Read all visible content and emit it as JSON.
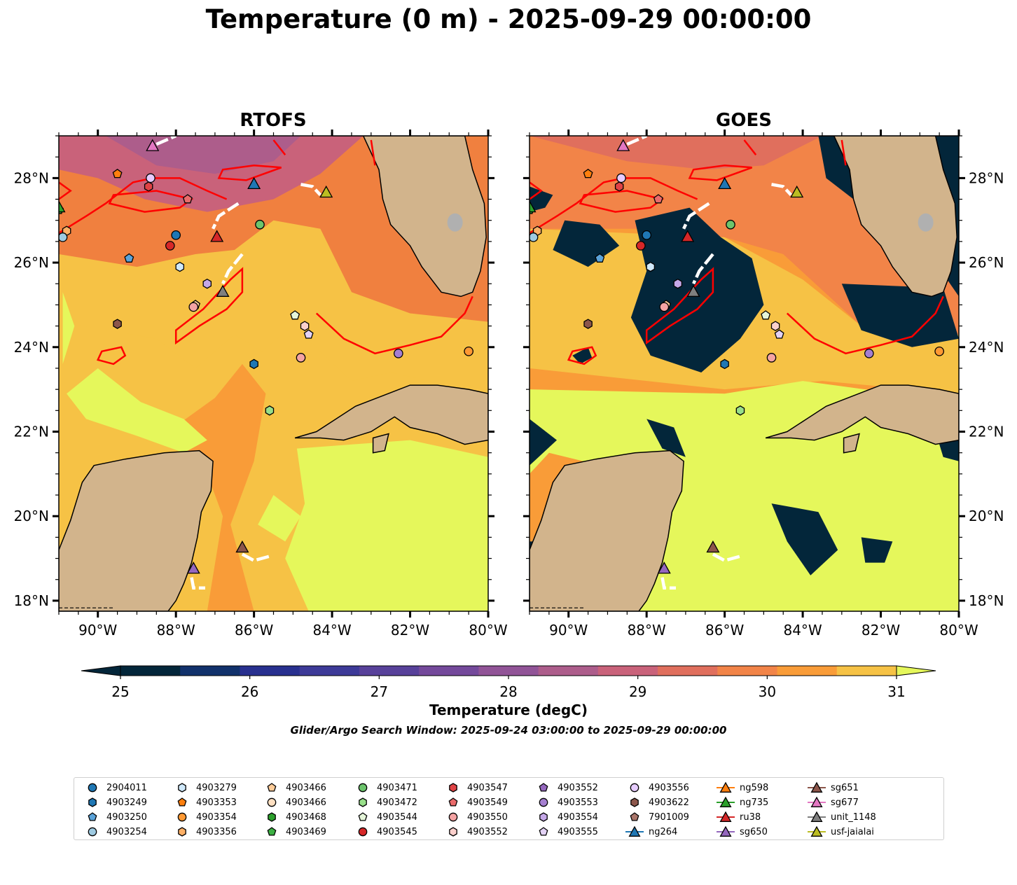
{
  "title": "Temperature (0 m) - 2025-09-29 00:00:00",
  "panels": [
    {
      "title": "RTOFS",
      "source": "model"
    },
    {
      "title": "GOES",
      "source": "satellite"
    }
  ],
  "map": {
    "lon_range": [
      -91,
      -80
    ],
    "lat_range": [
      17.75,
      29
    ],
    "lon_ticks": [
      "90°W",
      "88°W",
      "86°W",
      "84°W",
      "82°W",
      "80°W"
    ],
    "lon_tick_values": [
      -90,
      -88,
      -86,
      -84,
      -82,
      -80
    ],
    "lat_ticks": [
      "18°N",
      "20°N",
      "22°N",
      "24°N",
      "26°N",
      "28°N"
    ],
    "lat_tick_values": [
      18,
      20,
      22,
      24,
      26,
      28
    ],
    "land_color": "#d2b48c",
    "contour_color": "#ff0000",
    "track_color": "#ffffff"
  },
  "colorbar": {
    "label": "Temperature (degC)",
    "ticks": [
      "25",
      "26",
      "27",
      "28",
      "29",
      "30",
      "31"
    ],
    "levels": [
      25,
      25.5,
      26,
      26.5,
      27,
      27.5,
      28,
      28.5,
      29,
      29.5,
      30,
      30.5,
      31
    ],
    "colors": [
      "#03263a",
      "#11316b",
      "#28308f",
      "#3d3a98",
      "#58419a",
      "#74499b",
      "#915497",
      "#ad5d8b",
      "#c9627a",
      "#e06f5d",
      "#f28448",
      "#f99c38",
      "#f6c245"
    ],
    "over_color": "#e5f75b",
    "extend": "both"
  },
  "search_window": "Glider/Argo Search Window: 2025-09-24 03:00:00 to 2025-09-29 00:00:00",
  "legend": [
    {
      "label": "2904011",
      "marker": "circle",
      "color": "#1f77b4"
    },
    {
      "label": "4903249",
      "marker": "hexagon",
      "color": "#1f77b4"
    },
    {
      "label": "4903250",
      "marker": "pentagon",
      "color": "#5ba3d9"
    },
    {
      "label": "4903254",
      "marker": "circle",
      "color": "#9ecae1"
    },
    {
      "label": "4903279",
      "marker": "hexagon",
      "color": "#cfe8fa"
    },
    {
      "label": "4903353",
      "marker": "pentagon",
      "color": "#ff7f0e"
    },
    {
      "label": "4903354",
      "marker": "circle",
      "color": "#ff9933"
    },
    {
      "label": "4903356",
      "marker": "hexagon",
      "color": "#ffb066"
    },
    {
      "label": "4903466",
      "marker": "pentagon",
      "color": "#ffcc99"
    },
    {
      "label": "4903466",
      "marker": "circle",
      "color": "#ffe0c2"
    },
    {
      "label": "4903468",
      "marker": "hexagon",
      "color": "#2ca02c"
    },
    {
      "label": "4903469",
      "marker": "pentagon",
      "color": "#3cb043"
    },
    {
      "label": "4903471",
      "marker": "circle",
      "color": "#6cc46c"
    },
    {
      "label": "4903472",
      "marker": "hexagon",
      "color": "#98df8a"
    },
    {
      "label": "4903544",
      "marker": "pentagon",
      "color": "#e5f5d9"
    },
    {
      "label": "4903545",
      "marker": "circle",
      "color": "#d62728"
    },
    {
      "label": "4903547",
      "marker": "hexagon",
      "color": "#e04345"
    },
    {
      "label": "4903549",
      "marker": "pentagon",
      "color": "#ea6b6b"
    },
    {
      "label": "4903550",
      "marker": "circle",
      "color": "#f4a3a3"
    },
    {
      "label": "4903552",
      "marker": "hexagon",
      "color": "#fbd0cc"
    },
    {
      "label": "4903552",
      "marker": "pentagon",
      "color": "#9467bd"
    },
    {
      "label": "4903553",
      "marker": "circle",
      "color": "#a57fd0"
    },
    {
      "label": "4903554",
      "marker": "hexagon",
      "color": "#c5a8e8"
    },
    {
      "label": "4903555",
      "marker": "pentagon",
      "color": "#e3d2f5"
    },
    {
      "label": "4903556",
      "marker": "circle",
      "color": "#e6ccff"
    },
    {
      "label": "4903622",
      "marker": "hexagon",
      "color": "#8c564b"
    },
    {
      "label": "7901009",
      "marker": "pentagon",
      "color": "#a9756a"
    },
    {
      "label": "ng264",
      "marker": "triangle",
      "color": "#1f77b4"
    },
    {
      "label": "ng598",
      "marker": "triangle",
      "color": "#ff7f0e"
    },
    {
      "label": "ng735",
      "marker": "triangle",
      "color": "#2ca02c"
    },
    {
      "label": "ru38",
      "marker": "triangle",
      "color": "#d62728"
    },
    {
      "label": "sg650",
      "marker": "triangle",
      "color": "#9467bd"
    },
    {
      "label": "sg651",
      "marker": "triangle",
      "color": "#8c564b"
    },
    {
      "label": "sg677",
      "marker": "triangle",
      "color": "#e377c2"
    },
    {
      "label": "unit_1148",
      "marker": "triangle",
      "color": "#7f7f7f"
    },
    {
      "label": "usf-jaialai",
      "marker": "triangle",
      "color": "#bcbd22"
    }
  ],
  "observations": [
    {
      "id": "4903469",
      "lon": -91.0,
      "lat": 27.25
    },
    {
      "id": "4903356",
      "lon": -90.8,
      "lat": 26.75
    },
    {
      "id": "4903254",
      "lon": -90.9,
      "lat": 26.6
    },
    {
      "id": "4903353",
      "lon": -89.5,
      "lat": 28.1
    },
    {
      "id": "4903556",
      "lon": -88.65,
      "lat": 28.0
    },
    {
      "id": "4903547",
      "lon": -88.7,
      "lat": 27.8
    },
    {
      "id": "4903549",
      "lon": -87.7,
      "lat": 27.5
    },
    {
      "id": "2904011",
      "lon": -88.0,
      "lat": 26.65
    },
    {
      "id": "4903545",
      "lon": -88.15,
      "lat": 26.4
    },
    {
      "id": "4903250",
      "lon": -89.2,
      "lat": 26.1
    },
    {
      "id": "4903279",
      "lon": -87.9,
      "lat": 25.9
    },
    {
      "id": "4903471",
      "lon": -85.85,
      "lat": 26.9
    },
    {
      "id": "4903554",
      "lon": -87.2,
      "lat": 25.5
    },
    {
      "id": "4903466",
      "lon": -87.5,
      "lat": 25.0
    },
    {
      "id": "4903550",
      "lon": -87.55,
      "lat": 24.95
    },
    {
      "id": "4903622",
      "lon": -89.5,
      "lat": 24.55
    },
    {
      "id": "4903544",
      "lon": -84.95,
      "lat": 24.75
    },
    {
      "id": "4903552",
      "lon": -84.7,
      "lat": 24.5
    },
    {
      "id": "4903555",
      "lon": -84.6,
      "lat": 24.3
    },
    {
      "id": "4903550",
      "lon": -84.8,
      "lat": 23.75
    },
    {
      "id": "4903249",
      "lon": -86.0,
      "lat": 23.6
    },
    {
      "id": "4903553",
      "lon": -82.3,
      "lat": 23.85
    },
    {
      "id": "4903354",
      "lon": -80.5,
      "lat": 23.9
    },
    {
      "id": "4903472",
      "lon": -85.6,
      "lat": 22.5
    }
  ],
  "gliders": [
    {
      "id": "sg677",
      "lon": -88.6,
      "lat": 28.75
    },
    {
      "id": "ng264",
      "lon": -86.0,
      "lat": 27.85
    },
    {
      "id": "usf-jaialai",
      "lon": -84.15,
      "lat": 27.65
    },
    {
      "id": "ng735",
      "lon": -91.0,
      "lat": 27.3
    },
    {
      "id": "ru38",
      "lon": -86.95,
      "lat": 26.6
    },
    {
      "id": "unit_1148",
      "lon": -86.8,
      "lat": 25.3
    },
    {
      "id": "sg651",
      "lon": -86.3,
      "lat": 19.25
    },
    {
      "id": "sg650",
      "lon": -87.55,
      "lat": 18.75
    }
  ]
}
